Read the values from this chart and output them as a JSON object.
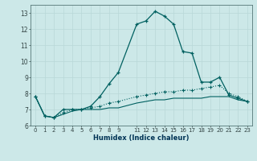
{
  "xlabel": "Humidex (Indice chaleur)",
  "bg_color": "#cce8e8",
  "grid_major_color": "#b8d8d8",
  "grid_minor_color": "#d4ecec",
  "line_color": "#006060",
  "xlim": [
    -0.5,
    23.5
  ],
  "ylim": [
    6,
    13.5
  ],
  "xticks": [
    0,
    1,
    2,
    3,
    4,
    5,
    6,
    7,
    8,
    9,
    11,
    12,
    13,
    14,
    15,
    16,
    17,
    18,
    19,
    20,
    21,
    22,
    23
  ],
  "yticks": [
    6,
    7,
    8,
    9,
    10,
    11,
    12,
    13
  ],
  "series1_x": [
    0,
    1,
    2,
    3,
    4,
    5,
    6,
    7,
    8,
    9,
    11,
    12,
    13,
    14,
    15,
    16,
    17,
    18,
    19,
    20,
    21,
    22,
    23
  ],
  "series1_y": [
    7.8,
    6.6,
    6.5,
    7.0,
    7.0,
    7.0,
    7.2,
    7.8,
    8.6,
    9.3,
    12.3,
    12.5,
    13.1,
    12.8,
    12.3,
    10.6,
    10.5,
    8.7,
    8.7,
    9.0,
    7.9,
    7.7,
    7.5
  ],
  "series2_x": [
    0,
    1,
    2,
    3,
    4,
    5,
    6,
    7,
    8,
    9,
    11,
    12,
    13,
    14,
    15,
    16,
    17,
    18,
    19,
    20,
    21,
    22,
    23
  ],
  "series2_y": [
    7.8,
    6.6,
    6.5,
    6.8,
    7.0,
    7.0,
    7.1,
    7.2,
    7.4,
    7.5,
    7.8,
    7.9,
    8.0,
    8.1,
    8.1,
    8.2,
    8.2,
    8.3,
    8.4,
    8.5,
    8.0,
    7.8,
    7.5
  ],
  "series3_x": [
    0,
    1,
    2,
    3,
    4,
    5,
    6,
    7,
    8,
    9,
    11,
    12,
    13,
    14,
    15,
    16,
    17,
    18,
    19,
    20,
    21,
    22,
    23
  ],
  "series3_y": [
    7.8,
    6.6,
    6.5,
    6.7,
    6.9,
    7.0,
    7.0,
    7.0,
    7.1,
    7.1,
    7.4,
    7.5,
    7.6,
    7.6,
    7.7,
    7.7,
    7.7,
    7.7,
    7.8,
    7.8,
    7.8,
    7.6,
    7.5
  ]
}
